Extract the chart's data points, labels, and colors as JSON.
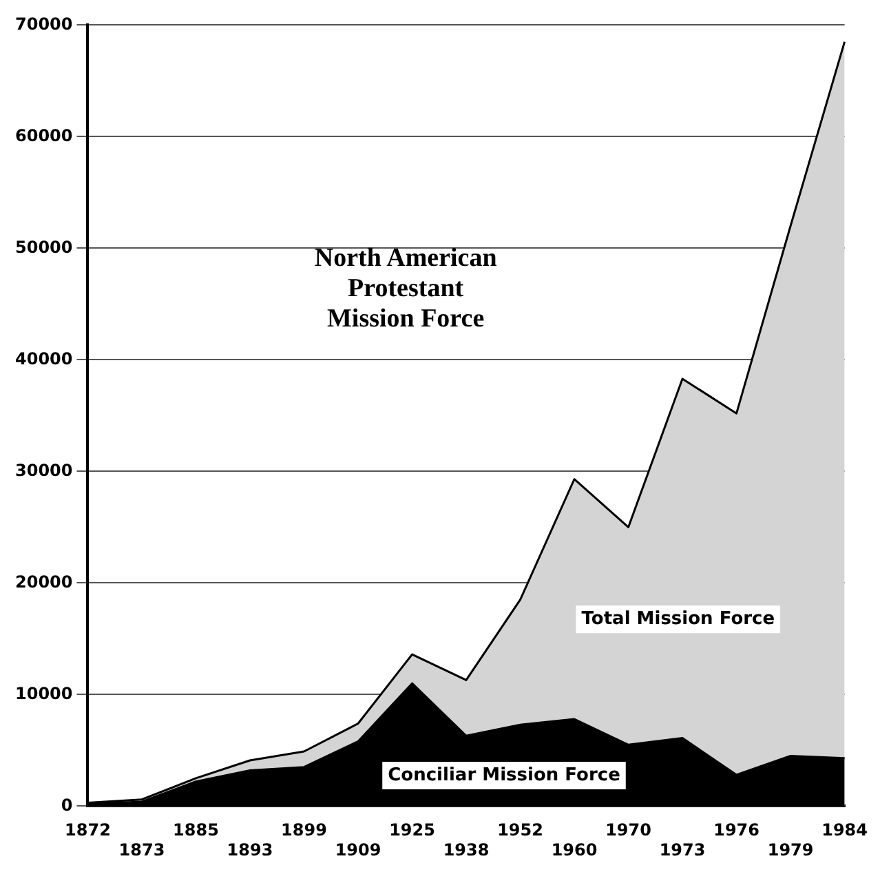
{
  "chart_data": {
    "type": "area",
    "title": "North American Protestant Mission Force",
    "categories": [
      "1872",
      "1873",
      "1885",
      "1893",
      "1899",
      "1909",
      "1925",
      "1938",
      "1952",
      "1960",
      "1970",
      "1973",
      "1976",
      "1979",
      "1984"
    ],
    "series": [
      {
        "name": "Total Mission Force",
        "color": "#d4d4d4",
        "values": [
          300,
          600,
          2500,
          4100,
          4900,
          7400,
          13600,
          11300,
          18500,
          29300,
          25000,
          38300,
          35200,
          52000,
          68500
        ]
      },
      {
        "name": "Conciliar Mission Force",
        "color": "#000000",
        "values": [
          200,
          400,
          2200,
          3200,
          3500,
          5800,
          11000,
          6300,
          7300,
          7800,
          5500,
          6100,
          2800,
          4500,
          4300
        ]
      }
    ],
    "ylim": [
      0,
      70000
    ],
    "yticks": [
      0,
      10000,
      20000,
      30000,
      40000,
      50000,
      60000,
      70000
    ],
    "grid": "y",
    "legend": false
  }
}
